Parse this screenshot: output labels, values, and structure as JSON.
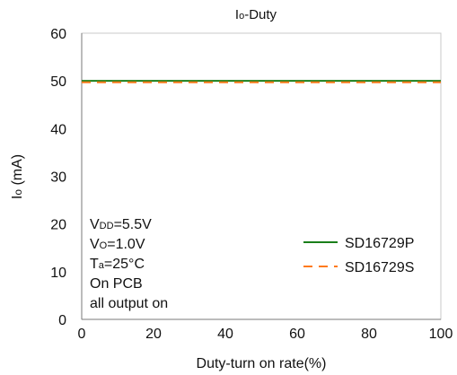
{
  "chart_data": {
    "type": "line",
    "title_main": "I",
    "title_sub": "o",
    "title_tail": "-Duty",
    "xlabel": "Duty-turn on rate(%)",
    "ylabel_main": "I",
    "ylabel_sub": "o",
    "ylabel_tail": " (mA)",
    "xlim": [
      0,
      100
    ],
    "ylim": [
      0,
      60
    ],
    "x_ticks": [
      0,
      20,
      40,
      60,
      80,
      100
    ],
    "y_ticks": [
      0,
      10,
      20,
      30,
      40,
      50,
      60
    ],
    "x_tick_labels": [
      "0",
      "20",
      "40",
      "60",
      "80",
      "100"
    ],
    "y_tick_labels": [
      "0",
      "10",
      "20",
      "30",
      "40",
      "50",
      "60"
    ],
    "grid": true,
    "legend_position": "bottom-right",
    "series": [
      {
        "name": "SD16729P",
        "color": "#1a7f1a",
        "style": "solid",
        "x": [
          0,
          100
        ],
        "y": [
          50,
          50
        ]
      },
      {
        "name": "SD16729S",
        "color": "#ff7a1a",
        "style": "dashed",
        "x": [
          0,
          100
        ],
        "y": [
          49.7,
          49.7
        ]
      }
    ],
    "annotations": {
      "vdd_main": "V",
      "vdd_sub": "DD",
      "vdd_tail": "=5.5V",
      "vo_main": "V",
      "vo_sub": "O",
      "vo_tail": "=1.0V",
      "ta_main": "T",
      "ta_sub": "a",
      "ta_tail": "=25°C",
      "line4": "On PCB",
      "line5": "all output on"
    }
  }
}
